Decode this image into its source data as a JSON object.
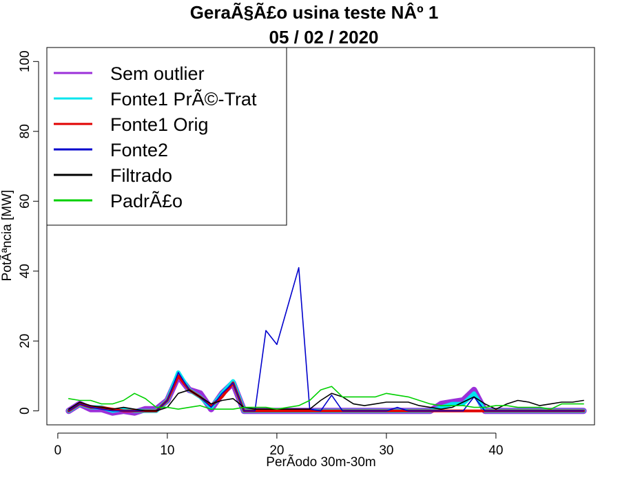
{
  "chart_data": {
    "type": "line",
    "title": "GeraÃ§Ã£o usina teste NÂº 1",
    "subtitle": "05 / 02 / 2020",
    "xlabel": "PerÃ­odo 30m-30m",
    "ylabel": "PotÃªncia [MW]",
    "xlim": [
      -1,
      49
    ],
    "ylim": [
      -4,
      104
    ],
    "xticks": [
      0,
      10,
      20,
      30,
      40
    ],
    "yticks": [
      0,
      20,
      40,
      60,
      80,
      100
    ],
    "legend_position": "top-left",
    "x": [
      1,
      2,
      3,
      4,
      5,
      6,
      7,
      8,
      9,
      10,
      11,
      12,
      13,
      14,
      15,
      16,
      17,
      18,
      19,
      20,
      21,
      22,
      23,
      24,
      25,
      26,
      27,
      28,
      29,
      30,
      31,
      32,
      33,
      34,
      35,
      36,
      37,
      38,
      39,
      40,
      41,
      42,
      43,
      44,
      45,
      46,
      47,
      48
    ],
    "series": [
      {
        "name": "Sem outlier",
        "color": "#9b30d9",
        "width": 9,
        "values": [
          0,
          2,
          0.5,
          0.5,
          -0.5,
          0,
          -0.5,
          0.5,
          0.5,
          3,
          10,
          6,
          5,
          0.5,
          5,
          8,
          0,
          0,
          0,
          0,
          0,
          0,
          0,
          0,
          0,
          0,
          0,
          0,
          0,
          0,
          0,
          0,
          0,
          0,
          2,
          2.5,
          3,
          6,
          0,
          0,
          0,
          0,
          0,
          0,
          0,
          0,
          0,
          0
        ]
      },
      {
        "name": "Fonte1 PrÃ©-Trat",
        "color": "#00e5ee",
        "width": 6,
        "values": [
          0,
          2,
          1,
          1,
          0,
          0.5,
          0,
          0,
          0,
          3,
          11,
          6,
          4,
          1,
          5,
          8.5,
          0,
          0,
          0,
          0,
          0,
          0,
          0,
          0,
          0,
          0,
          0,
          0,
          0,
          0,
          0,
          0,
          0,
          0,
          1,
          2,
          2,
          5,
          0,
          0,
          0,
          0,
          0,
          0,
          0,
          0,
          0,
          0
        ]
      },
      {
        "name": "Fonte1 Orig",
        "color": "#e00000",
        "width": 4,
        "values": [
          0,
          2,
          1,
          1,
          0.5,
          0,
          0,
          0,
          0,
          3,
          10,
          6,
          4,
          1.5,
          4,
          8,
          0,
          0,
          0,
          0,
          0,
          0,
          0,
          0,
          0,
          0,
          0,
          0,
          0,
          0,
          0,
          0,
          0,
          0,
          0,
          0,
          0,
          0,
          0,
          0,
          0,
          0,
          0,
          0,
          0,
          0,
          0,
          0
        ]
      },
      {
        "name": "Fonte2",
        "color": "#0000cc",
        "width": 1.6,
        "values": [
          0,
          2,
          1,
          0.5,
          0,
          0,
          0,
          0,
          0,
          3,
          11,
          6,
          4,
          1,
          5,
          8,
          0,
          0,
          23,
          19,
          30,
          41,
          0.5,
          0,
          4.5,
          0,
          0,
          0,
          0,
          0,
          1,
          0,
          0,
          0,
          0,
          0,
          0,
          4,
          0,
          0,
          0,
          0,
          0,
          0,
          0,
          0,
          0,
          0
        ]
      },
      {
        "name": "Filtrado",
        "color": "#000000",
        "width": 1.6,
        "values": [
          0.5,
          2.5,
          1.5,
          1,
          0.5,
          1,
          0.5,
          0,
          0,
          1,
          5,
          6,
          4,
          2,
          3,
          3.5,
          1,
          0.5,
          0.5,
          0.5,
          0.5,
          0.5,
          0.5,
          3,
          5,
          4,
          2,
          1.5,
          2,
          2.5,
          2.5,
          2.5,
          1.5,
          1,
          0.5,
          1,
          2.5,
          4,
          2,
          0.5,
          2,
          3,
          2.5,
          1.5,
          2,
          2.5,
          2.5,
          3
        ]
      },
      {
        "name": "PadrÃ£o",
        "color": "#00d000",
        "width": 1.6,
        "values": [
          3.5,
          3,
          3,
          2,
          2,
          3,
          5,
          3.5,
          1,
          1,
          0.5,
          1,
          1.5,
          0.5,
          0.5,
          0.5,
          1,
          1,
          1,
          0.5,
          1,
          1.5,
          3,
          6,
          7,
          4,
          4,
          4,
          4,
          5,
          4.5,
          4,
          3,
          2,
          1.5,
          1.5,
          1.5,
          1,
          1,
          1.5,
          1.5,
          1,
          1,
          1,
          0.5,
          2,
          2,
          2
        ]
      }
    ]
  }
}
